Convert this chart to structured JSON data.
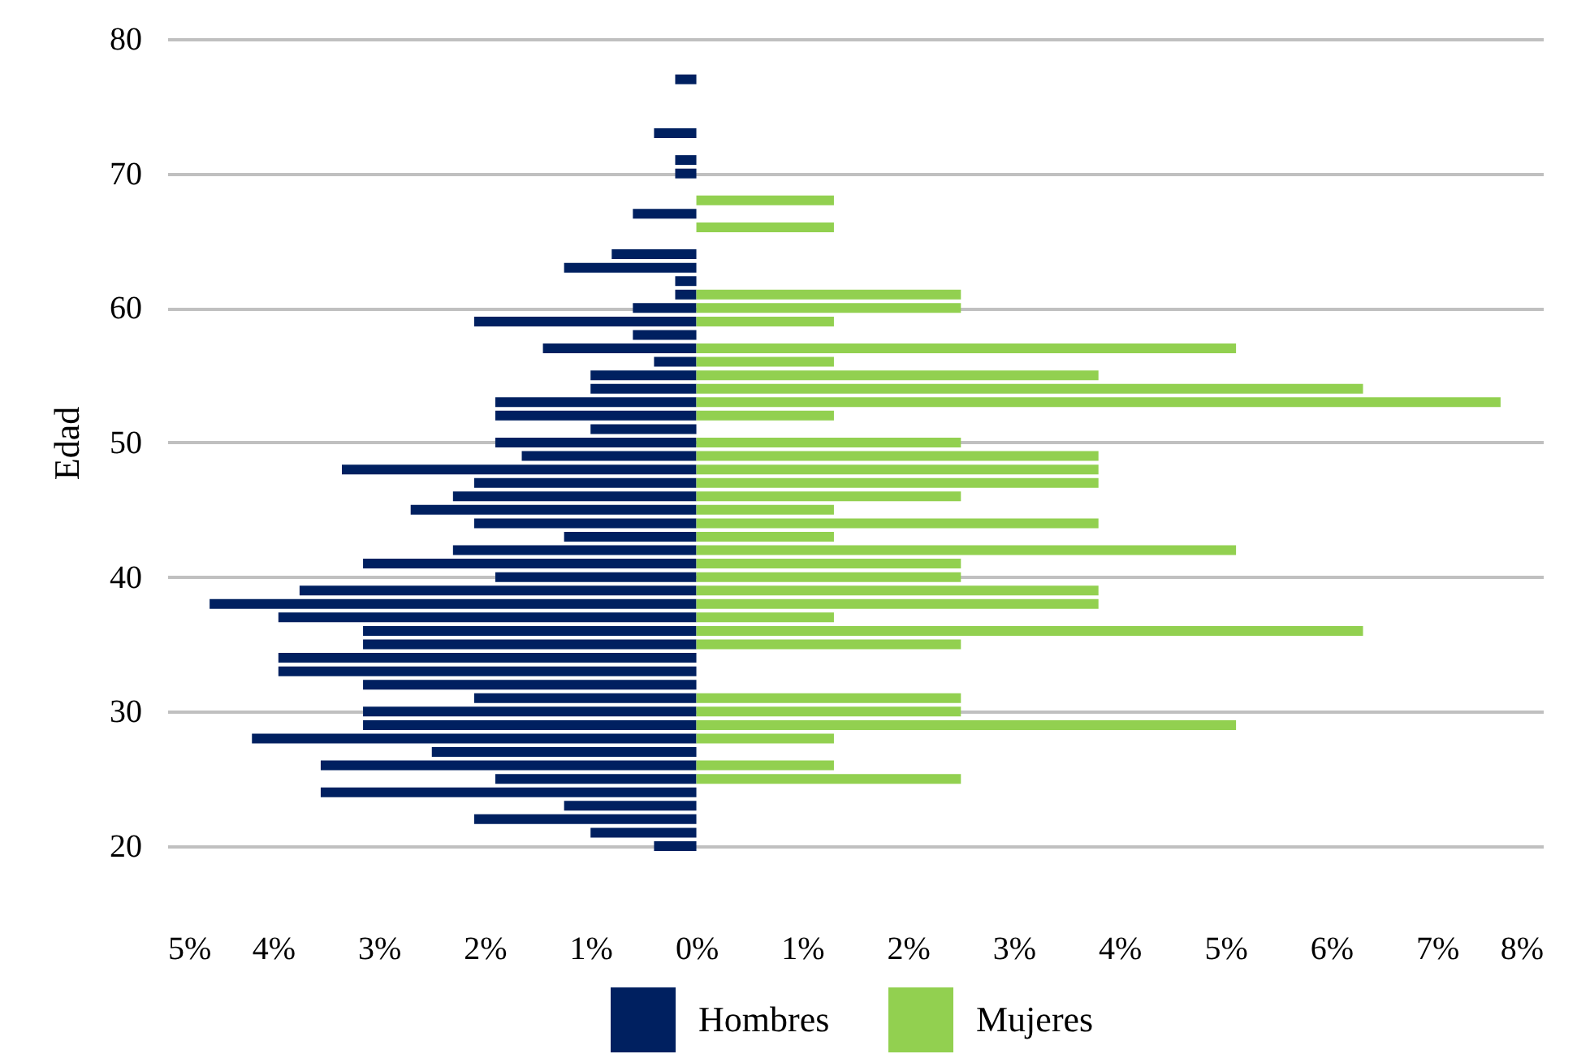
{
  "chart_data": {
    "type": "bar",
    "orientation": "horizontal",
    "stacked": true,
    "ylabel": "Edad",
    "x": [
      20,
      21,
      22,
      23,
      24,
      25,
      26,
      27,
      28,
      29,
      30,
      31,
      32,
      33,
      34,
      35,
      36,
      37,
      38,
      39,
      40,
      41,
      42,
      43,
      44,
      45,
      46,
      47,
      48,
      49,
      50,
      51,
      52,
      53,
      54,
      55,
      56,
      57,
      58,
      59,
      60,
      61,
      62,
      63,
      64,
      65,
      66,
      67,
      68,
      69,
      70,
      71,
      72,
      73,
      74,
      75,
      76,
      77
    ],
    "series": [
      {
        "name": "Hombres",
        "color": "#002060",
        "values": [
          -0.4,
          -1.0,
          -2.1,
          -1.25,
          -3.55,
          -1.9,
          -3.55,
          -2.5,
          -4.2,
          -3.15,
          -3.15,
          -2.1,
          -3.15,
          -3.95,
          -3.95,
          -3.15,
          -3.15,
          -3.95,
          -4.6,
          -3.75,
          -1.9,
          -3.15,
          -2.3,
          -1.25,
          -2.1,
          -2.7,
          -2.3,
          -2.1,
          -3.35,
          -1.65,
          -1.9,
          -1.0,
          -1.9,
          -1.9,
          -1.0,
          -1.0,
          -0.4,
          -1.45,
          -0.6,
          -2.1,
          -0.6,
          -0.2,
          -0.2,
          -1.25,
          -0.8,
          null,
          null,
          -0.6,
          null,
          null,
          -0.2,
          -0.2,
          null,
          -0.4,
          null,
          null,
          null,
          -0.2
        ]
      },
      {
        "name": "Mujeres",
        "color": "#92d050",
        "values": [
          null,
          null,
          null,
          null,
          null,
          2.5,
          1.3,
          null,
          1.3,
          5.1,
          2.5,
          2.5,
          null,
          null,
          null,
          2.5,
          6.3,
          1.3,
          3.8,
          3.8,
          2.5,
          2.5,
          5.1,
          1.3,
          3.8,
          1.3,
          2.5,
          3.8,
          3.8,
          3.8,
          2.5,
          null,
          1.3,
          7.6,
          6.3,
          3.8,
          1.3,
          5.1,
          null,
          1.3,
          2.5,
          2.5,
          null,
          null,
          null,
          null,
          1.3,
          null,
          1.3,
          null,
          null,
          null,
          null,
          null,
          null,
          null,
          null,
          null
        ]
      }
    ],
    "xlim": [
      -5,
      8
    ],
    "xticks": [
      {
        "value": -5,
        "label": "5%"
      },
      {
        "value": -4,
        "label": "4%"
      },
      {
        "value": -3,
        "label": "3%"
      },
      {
        "value": -2,
        "label": "2%"
      },
      {
        "value": -1,
        "label": "1%"
      },
      {
        "value": 0,
        "label": "0%"
      },
      {
        "value": 1,
        "label": "1%"
      },
      {
        "value": 2,
        "label": "2%"
      },
      {
        "value": 3,
        "label": "3%"
      },
      {
        "value": 4,
        "label": "4%"
      },
      {
        "value": 5,
        "label": "5%"
      },
      {
        "value": 6,
        "label": "6%"
      },
      {
        "value": 7,
        "label": "7%"
      },
      {
        "value": 8,
        "label": "8%"
      }
    ],
    "ylim": [
      20,
      80
    ],
    "yticks": [
      20,
      30,
      40,
      50,
      60,
      70,
      80
    ],
    "grid": "y",
    "legend": "bottom"
  }
}
